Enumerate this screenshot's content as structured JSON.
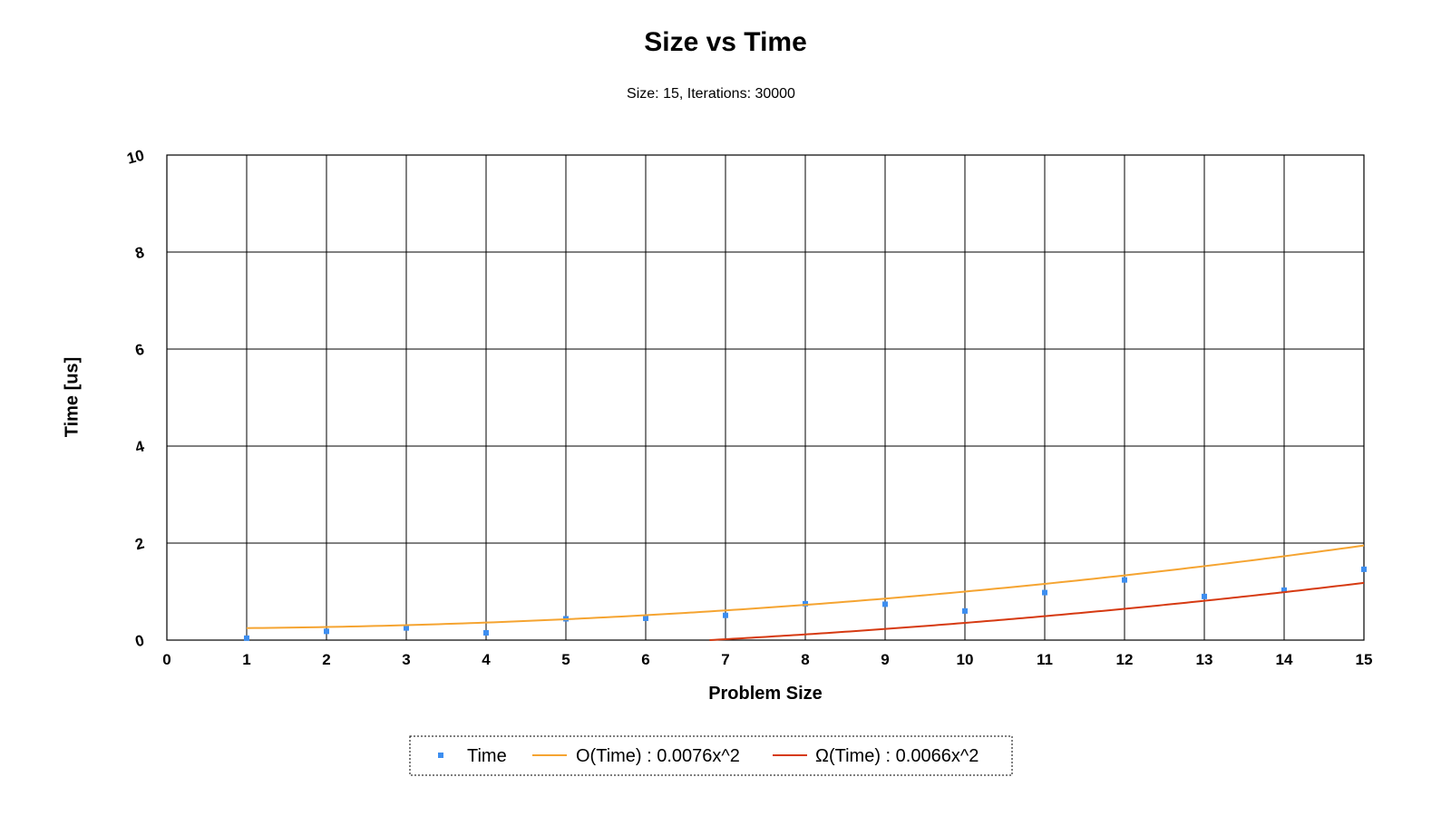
{
  "chart_data": {
    "type": "scatter",
    "title": "Size vs Time",
    "subtitle": "Size: 15, Iterations: 30000",
    "xlabel": "Problem Size",
    "ylabel": "Time [us]",
    "xlim": [
      0,
      15
    ],
    "ylim": [
      0,
      10
    ],
    "xticks": [
      "0",
      "1",
      "2",
      "3",
      "4",
      "5",
      "6",
      "7",
      "8",
      "9",
      "10",
      "11",
      "12",
      "13",
      "14",
      "15"
    ],
    "yticks": [
      "0",
      "2",
      "4",
      "6",
      "8",
      "10"
    ],
    "grid": true,
    "legend_position": "bottom-center",
    "series": [
      {
        "name": "Time",
        "kind": "scatter",
        "color": "#3d8ef0",
        "x": [
          1,
          2,
          3,
          4,
          5,
          6,
          7,
          8,
          9,
          10,
          11,
          12,
          13,
          14,
          15
        ],
        "y": [
          0.04,
          0.18,
          0.25,
          0.15,
          0.44,
          0.45,
          0.51,
          0.75,
          0.74,
          0.6,
          0.98,
          1.24,
          0.9,
          1.03,
          1.46
        ]
      },
      {
        "name": "O(Time) : 0.0076x^2",
        "kind": "line",
        "color": "#f5a431",
        "coef": 0.0076,
        "x": [
          1,
          2,
          3,
          4,
          5,
          6,
          7,
          8,
          9,
          10,
          11,
          12,
          13,
          14,
          15
        ],
        "y": [
          0.27,
          0.29,
          0.32,
          0.37,
          0.44,
          0.53,
          0.63,
          0.75,
          0.88,
          1.03,
          1.17,
          1.34,
          1.53,
          1.73,
          1.95
        ]
      },
      {
        "name": "Ω(Time) : 0.0066x^2",
        "kind": "line",
        "color": "#d63a12",
        "coef": 0.0066,
        "x": [
          6.8,
          7,
          8,
          9,
          10,
          11,
          12,
          13,
          14,
          15
        ],
        "y": [
          0.0,
          0.02,
          0.12,
          0.23,
          0.35,
          0.49,
          0.65,
          0.82,
          0.99,
          1.18
        ]
      }
    ]
  }
}
